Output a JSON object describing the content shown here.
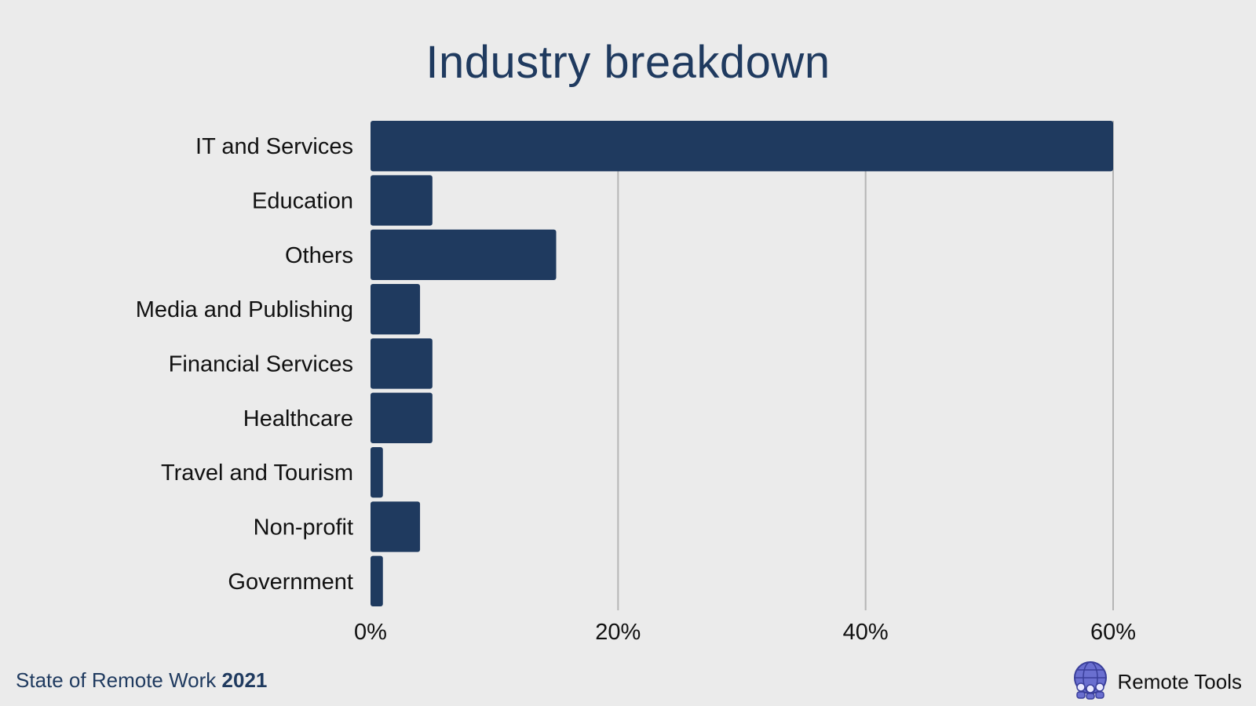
{
  "title": "Industry breakdown",
  "footer": {
    "report_label": "State of Remote Work",
    "report_year": "2021",
    "brand": "Remote Tools",
    "brand_icon": "globe-people-icon"
  },
  "colors": {
    "bar": "#1f3a5f",
    "grid": "#b5b5b5",
    "background": "#ebebeb"
  },
  "chart_data": {
    "type": "bar",
    "orientation": "horizontal",
    "title": "Industry breakdown",
    "xlabel": "",
    "ylabel": "",
    "categories": [
      "IT and Services",
      "Education",
      "Others",
      "Media and Publishing",
      "Financial Services",
      "Healthcare",
      "Travel and Tourism",
      "Non-profit",
      "Government"
    ],
    "values": [
      60,
      5,
      15,
      4,
      5,
      5,
      1,
      4,
      1
    ],
    "value_unit": "%",
    "xlim": [
      0,
      60
    ],
    "xticks": [
      0,
      20,
      40,
      60
    ],
    "xtick_labels": [
      "0%",
      "20%",
      "40%",
      "60%"
    ],
    "grid": "vertical"
  }
}
